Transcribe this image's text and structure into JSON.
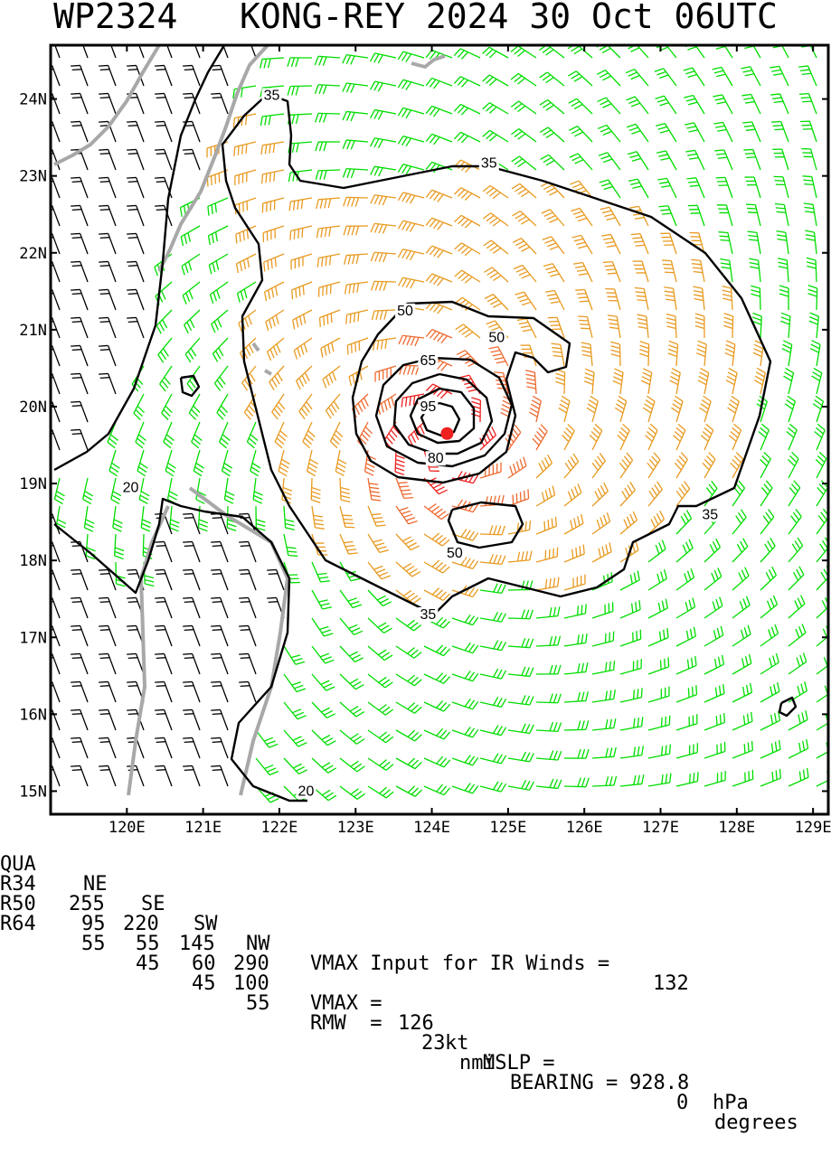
{
  "title": "WP2324   KONG-REY 2024 30 Oct 06UTC",
  "map": {
    "lon_range": [
      119.0,
      129.2
    ],
    "lat_range": [
      14.7,
      24.7
    ],
    "lon_ticks": [
      "120E",
      "121E",
      "122E",
      "123E",
      "124E",
      "125E",
      "126E",
      "127E",
      "128E",
      "129E"
    ],
    "lat_ticks": [
      "15N",
      "16N",
      "17N",
      "18N",
      "19N",
      "20N",
      "21N",
      "22N",
      "23N",
      "24N"
    ],
    "center": {
      "lon": 124.2,
      "lat": 19.65
    },
    "contour_labels": [
      {
        "text": "35",
        "lon": 121.9,
        "lat": 24.0
      },
      {
        "text": "35",
        "lon": 124.75,
        "lat": 23.12
      },
      {
        "text": "35",
        "lon": 127.65,
        "lat": 18.55
      },
      {
        "text": "35",
        "lon": 123.95,
        "lat": 17.25
      },
      {
        "text": "50",
        "lon": 123.65,
        "lat": 21.2
      },
      {
        "text": "50",
        "lon": 124.85,
        "lat": 20.85
      },
      {
        "text": "50",
        "lon": 124.3,
        "lat": 18.05
      },
      {
        "text": "65",
        "lon": 123.95,
        "lat": 20.55
      },
      {
        "text": "95",
        "lon": 123.95,
        "lat": 19.95
      },
      {
        "text": "80",
        "lon": 124.05,
        "lat": 19.28
      },
      {
        "text": "20",
        "lon": 120.05,
        "lat": 18.9
      },
      {
        "text": "20",
        "lon": 122.35,
        "lat": 14.95
      }
    ],
    "colors": {
      "black": "#000000",
      "green": "#00dd00",
      "orange": "#e89a20",
      "red": "#ee2020",
      "coast": "#a8a8a8"
    }
  },
  "stats": {
    "header": {
      "qua": "QUA",
      "ne": "NE",
      "se": "SE",
      "sw": "SW",
      "nw": "NW"
    },
    "rows": [
      {
        "label": "R34",
        "ne": "255",
        "se": "220",
        "sw": "145",
        "nw": "290"
      },
      {
        "label": "R50",
        "ne": "95",
        "se": "55",
        "sw": "60",
        "nw": "100"
      },
      {
        "label": "R64",
        "ne": "55",
        "se": "45",
        "sw": "45",
        "nw": "55"
      }
    ],
    "vmax_input_label": "VMAX Input for IR Winds =",
    "vmax_input_value": "132",
    "vmax_label": "VMAX =",
    "vmax_value": "126",
    "vmax_unit": "kt",
    "mslp_label": "MSLP =",
    "mslp_value": "928.8",
    "mslp_unit": "hPa",
    "rmw_label": "RMW  =",
    "rmw_value": "23",
    "rmw_unit": "nmi",
    "bearing_label": "BEARING =",
    "bearing_value": "0",
    "bearing_unit": "degrees"
  }
}
